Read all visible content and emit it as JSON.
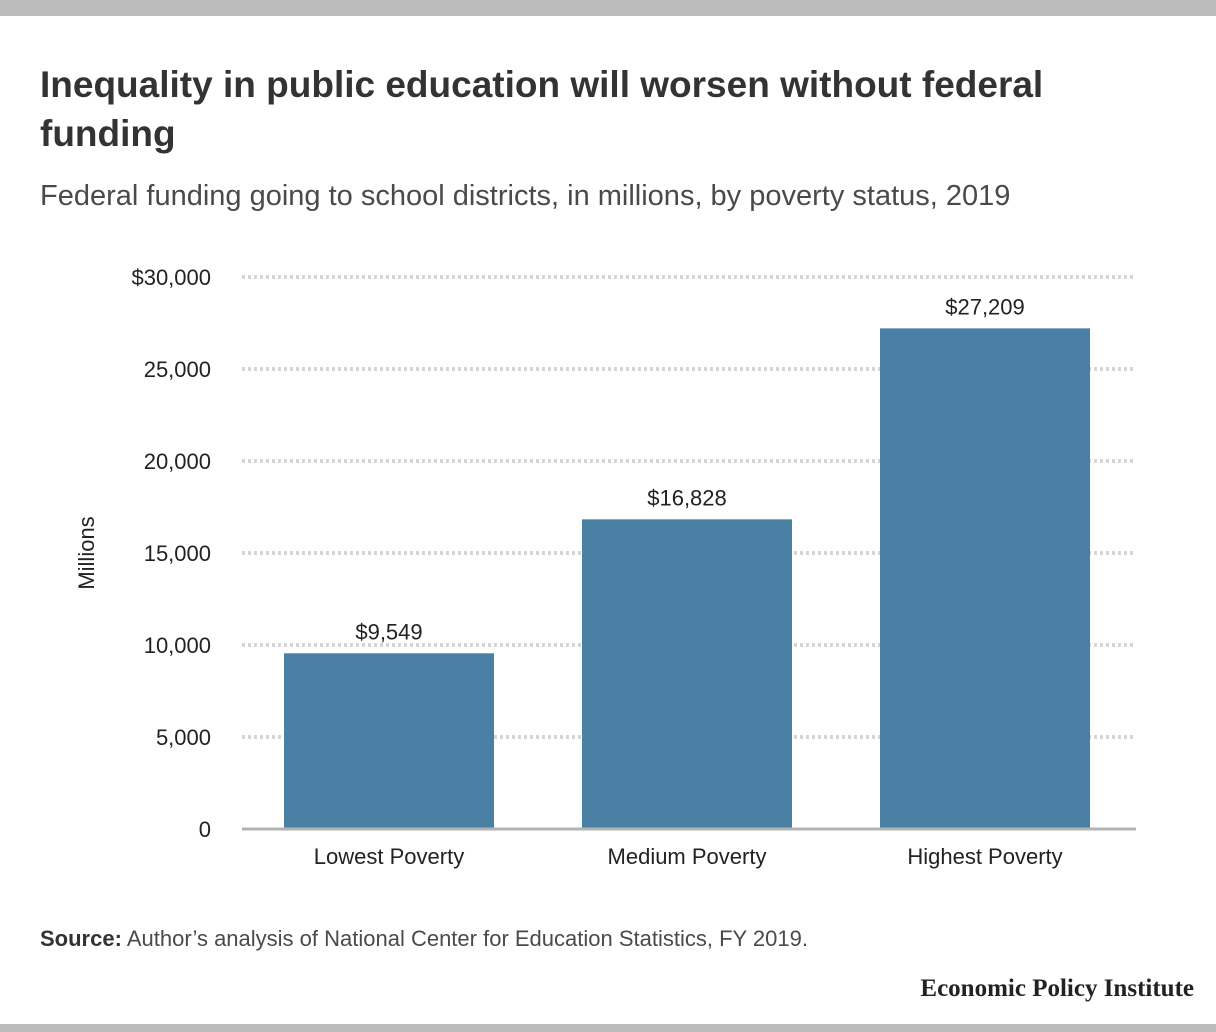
{
  "header": {
    "title": "Inequality in public education will worsen without federal funding",
    "subtitle": "Federal funding going to school districts, in millions, by poverty status, 2019"
  },
  "chart_data": {
    "type": "bar",
    "categories": [
      "Lowest Poverty",
      "Medium Poverty",
      "Highest Poverty"
    ],
    "values": [
      9549,
      16828,
      27209
    ],
    "value_labels": [
      "$9,549",
      "$16,828",
      "$27,209"
    ],
    "ylabel": "Millions",
    "ylim": [
      0,
      30000
    ],
    "yticks": [
      0,
      5000,
      10000,
      15000,
      20000,
      25000,
      30000
    ],
    "ytick_labels": [
      "0",
      "5,000",
      "10,000",
      "15,000",
      "20,000",
      "25,000",
      "$30,000"
    ],
    "grid": true,
    "legend": "none",
    "bar_color": "#4a80a3"
  },
  "footer": {
    "source_label": "Source:",
    "source_text": "Author’s analysis of National Center for Education Statistics, FY 2019.",
    "logo_text": "Economic Policy Institute"
  }
}
